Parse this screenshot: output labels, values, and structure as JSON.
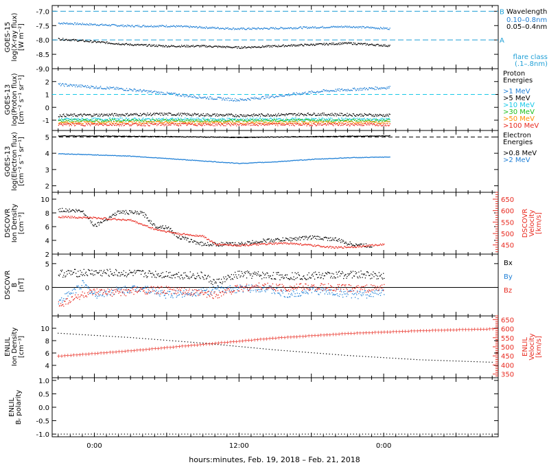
{
  "xaxis": {
    "ticks": [
      "0:00",
      "12:00",
      "0:00"
    ],
    "label": "hours:minutes, Feb. 19, 2018 – Feb. 21, 2018"
  },
  "colors": {
    "black": "#000000",
    "blue": "#1e7fd6",
    "red": "#e8281e",
    "cyan": "#16c8e8",
    "green": "#1cc01c",
    "yellow": "#c8c800",
    "orange": "#ff8c00",
    "dashed": "#1e9fd6"
  },
  "chart_data": [
    {
      "type": "line",
      "ylabel": [
        "GOES-15",
        "log(X-ray flux)",
        "[W m⁻²]"
      ],
      "ylim": [
        -9.0,
        -6.8
      ],
      "yticks": [
        "-7.0",
        "-7.5",
        "-8.0",
        "-8.5",
        "-9.0"
      ],
      "legend_title": "Wavelength",
      "markers": [
        {
          "label": "B",
          "y": -7.0
        },
        {
          "label": "A",
          "y": -8.0
        }
      ],
      "legend_note": [
        "flare class",
        "(.1–.8nm)"
      ],
      "series": [
        {
          "name": "0.10–0.8nm",
          "color": "blue",
          "x": [
            -3,
            3,
            6,
            9,
            12,
            15,
            18,
            21,
            25
          ],
          "y": [
            -7.4,
            -7.5,
            -7.5,
            -7.55,
            -7.6,
            -7.58,
            -7.55,
            -7.52,
            -7.6
          ]
        },
        {
          "name": "0.05–0.4nm",
          "color": "black",
          "x": [
            -3,
            3,
            6,
            9,
            12,
            15,
            18,
            21,
            25
          ],
          "y": [
            -7.95,
            -8.15,
            -8.2,
            -8.2,
            -8.25,
            -8.2,
            -8.15,
            -8.1,
            -8.2
          ]
        }
      ]
    },
    {
      "type": "scatter",
      "ylabel": [
        "GOES-13",
        "log(Proton flux)",
        "[cm⁻² s⁻¹ sr⁻¹]"
      ],
      "ylim": [
        -1.8,
        3.0
      ],
      "yticks": [
        "2",
        "1",
        "0",
        "-1"
      ],
      "legend_title": [
        "Proton",
        "Energies"
      ],
      "series": [
        {
          "name": ">1 MeV",
          "color": "blue",
          "x": [
            -3,
            3,
            9,
            12,
            15,
            19,
            25
          ],
          "y": [
            1.8,
            1.4,
            0.8,
            0.6,
            0.9,
            1.3,
            1.6
          ]
        },
        {
          "name": ">5 MeV",
          "color": "black",
          "x": [
            -3,
            6,
            12,
            18,
            25
          ],
          "y": [
            -0.6,
            -0.5,
            -0.6,
            -0.5,
            -0.6
          ]
        },
        {
          "name": ">10 MeV",
          "color": "cyan",
          "x": [
            -3,
            6,
            12,
            18,
            25
          ],
          "y": [
            -0.9,
            -0.9,
            -0.9,
            -0.9,
            -0.9
          ]
        },
        {
          "name": ">30 MeV",
          "color": "green",
          "x": [
            -3,
            6,
            12,
            18,
            25
          ],
          "y": [
            -1.0,
            -1.0,
            -1.0,
            -1.0,
            -1.0
          ]
        },
        {
          "name": ">50 MeV",
          "color": "orange",
          "x": [
            -3,
            6,
            12,
            18,
            25
          ],
          "y": [
            -1.15,
            -1.15,
            -1.15,
            -1.15,
            -1.15
          ]
        },
        {
          "name": ">100 MeV",
          "color": "red",
          "x": [
            -3,
            6,
            12,
            18,
            25
          ],
          "y": [
            -1.3,
            -1.3,
            -1.3,
            -1.3,
            -1.3
          ]
        }
      ],
      "reference_line": 1.0
    },
    {
      "type": "line",
      "ylabel": [
        "GOES-13",
        "log(Electron flux)",
        "[cm⁻² s⁻¹ sr⁻¹]"
      ],
      "ylim": [
        1.6,
        5.4
      ],
      "yticks": [
        "5",
        "4",
        "3",
        "2"
      ],
      "legend_title": [
        "Electron",
        "Energies"
      ],
      "series": [
        {
          "name": ">0.8 MeV",
          "color": "black",
          "x": [
            -3,
            6,
            12,
            18,
            25
          ],
          "y": [
            5.1,
            5.05,
            5.0,
            5.05,
            5.1
          ]
        },
        {
          "name": ">2 MeV",
          "color": "blue",
          "x": [
            -3,
            3,
            6,
            9,
            12,
            15,
            18,
            21,
            25
          ],
          "y": [
            4.0,
            3.85,
            3.7,
            3.55,
            3.4,
            3.5,
            3.65,
            3.75,
            3.8
          ]
        }
      ],
      "reference_line": 5.0
    },
    {
      "type": "scatter",
      "ylabel": [
        "DSCOVR",
        "Ion Density",
        "[cm⁻³]"
      ],
      "ylim": [
        2,
        11
      ],
      "yticks": [
        "10",
        "8",
        "6",
        "4",
        "2"
      ],
      "right_axis": {
        "label": [
          "DSCOVR",
          "Velocity",
          "[km/s]"
        ],
        "ticks": [
          "650",
          "600",
          "550",
          "500",
          "450"
        ],
        "ylim": [
          410,
          680
        ]
      },
      "series": [
        {
          "name": "Ion Density",
          "color": "black",
          "x": [
            -3,
            -1,
            0,
            2,
            4,
            5,
            6,
            7,
            9,
            10,
            12,
            14,
            16,
            18,
            20,
            21,
            23
          ],
          "y": [
            8.5,
            8.3,
            6.2,
            8.2,
            8.0,
            6.1,
            6.0,
            4.5,
            3.5,
            3.5,
            3.5,
            4.0,
            4.2,
            4.5,
            4.2,
            3.6,
            3.2
          ]
        },
        {
          "name": "Velocity",
          "color": "red",
          "x": [
            -3,
            0,
            3,
            5,
            7,
            9,
            10,
            12,
            14,
            16,
            18,
            20,
            22,
            24
          ],
          "y": [
            575,
            570,
            560,
            520,
            500,
            490,
            455,
            450,
            455,
            460,
            450,
            440,
            445,
            455
          ]
        }
      ]
    },
    {
      "type": "line",
      "ylabel": [
        "DSCOVR",
        "B",
        "[nT]"
      ],
      "ylim": [
        -6,
        7
      ],
      "yticks": [
        "5",
        "0"
      ],
      "legend": [
        "Bx",
        "By",
        "Bz"
      ],
      "series": [
        {
          "name": "Bx",
          "color": "black",
          "x": [
            -3,
            0,
            3,
            6,
            9,
            10,
            12,
            15,
            18,
            21,
            24
          ],
          "y": [
            3.0,
            3.2,
            3.0,
            2.8,
            2.5,
            1.0,
            2.8,
            2.5,
            2.5,
            2.8,
            2.6
          ]
        },
        {
          "name": "By",
          "color": "blue",
          "x": [
            -3,
            -1,
            0,
            2,
            4,
            6,
            8,
            10,
            12,
            14,
            16,
            18,
            20,
            22,
            24
          ],
          "y": [
            -3.0,
            0.8,
            -1.5,
            -0.5,
            0.0,
            -1.5,
            -1.0,
            -0.5,
            -0.2,
            0.0,
            -1.5,
            -0.5,
            -1.0,
            -1.5,
            -1.0
          ]
        },
        {
          "name": "Bz",
          "color": "red",
          "x": [
            -3,
            -1,
            0,
            2,
            4,
            6,
            8,
            10,
            12,
            14,
            16,
            18,
            20,
            22,
            24
          ],
          "y": [
            -3.5,
            -1.5,
            -1.0,
            -1.0,
            -0.5,
            -0.5,
            -1.0,
            -1.5,
            0.0,
            0.3,
            0.0,
            0.2,
            0.0,
            -0.2,
            0.0
          ]
        }
      ]
    },
    {
      "type": "line",
      "ylabel": [
        "ENLIL",
        "Ion Density",
        "[cm⁻³]"
      ],
      "ylim": [
        2,
        12
      ],
      "yticks": [
        "10",
        "8",
        "6",
        "4"
      ],
      "right_axis": {
        "label": [
          "ENLIL",
          "Velocity",
          "[km/s]"
        ],
        "ticks": [
          "650",
          "600",
          "550",
          "500",
          "450",
          "400",
          "350"
        ],
        "ylim": [
          330,
          670
        ]
      },
      "series": [
        {
          "name": "Ion Density",
          "color": "black",
          "x": [
            -3,
            3,
            9,
            15,
            21,
            27,
            33
          ],
          "y": [
            9.2,
            8.5,
            7.6,
            6.5,
            5.6,
            4.9,
            4.5
          ]
        },
        {
          "name": "Velocity",
          "color": "red",
          "x": [
            -3,
            3,
            9,
            15,
            21,
            27,
            33
          ],
          "y": [
            450,
            480,
            515,
            550,
            575,
            590,
            600
          ]
        }
      ]
    },
    {
      "type": "line",
      "ylabel": [
        "ENLIL",
        "Bᵣ polarity"
      ],
      "ylim": [
        -1.1,
        1.1
      ],
      "yticks": [
        "1.0",
        "0.5",
        "0.0",
        "-0.5",
        "-1.0"
      ],
      "series": [
        {
          "name": "polarity",
          "color": "black",
          "x": [
            -3,
            33
          ],
          "y": [
            -1.0,
            -1.0
          ]
        }
      ]
    }
  ]
}
